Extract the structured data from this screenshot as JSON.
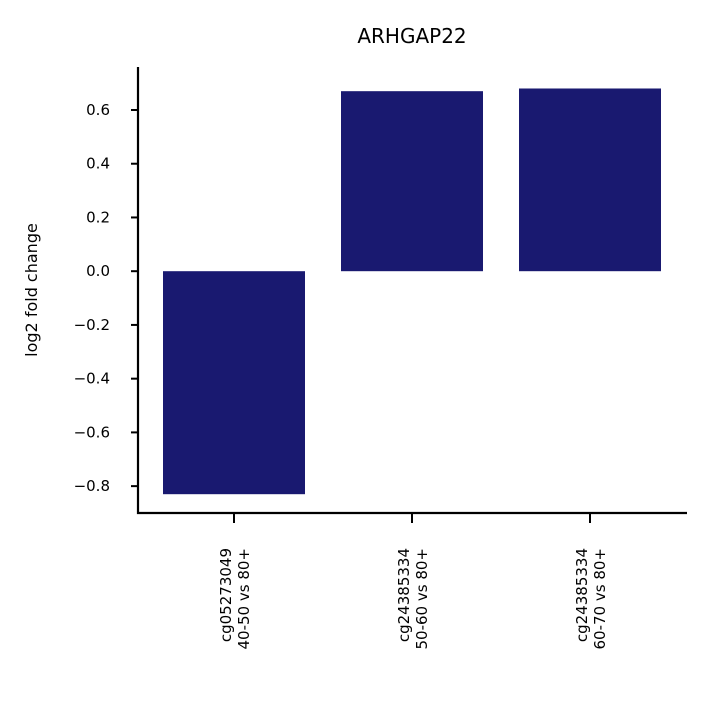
{
  "chart_data": {
    "type": "bar",
    "title": "ARHGAP22",
    "ylabel": "log2 fold change",
    "xlabel": "",
    "categories": [
      [
        "cg05273049",
        "40-50 vs 80+"
      ],
      [
        "cg24385334",
        "50-60 vs 80+"
      ],
      [
        "cg24385334",
        "60-70 vs 80+"
      ]
    ],
    "values": [
      -0.83,
      0.67,
      0.68
    ],
    "ylim": [
      -0.9,
      0.76
    ],
    "yticks": [
      -0.8,
      -0.6,
      -0.4,
      -0.2,
      0.0,
      0.2,
      0.4,
      0.6
    ],
    "ytick_labels": [
      "−0.8",
      "−0.6",
      "−0.4",
      "−0.2",
      "0.0",
      "0.2",
      "0.4",
      "0.6"
    ],
    "bar_color": "#191970",
    "grid": false,
    "legend": "none"
  }
}
